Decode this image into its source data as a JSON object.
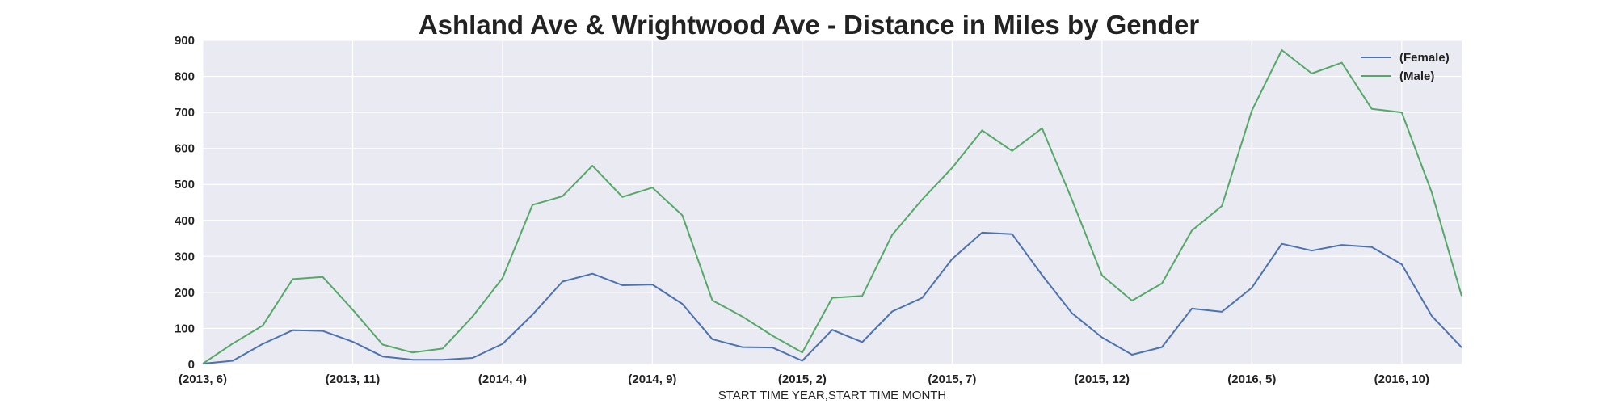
{
  "chart_data": {
    "type": "line",
    "title": "Ashland Ave & Wrightwood Ave - Distance in Miles by Gender",
    "xlabel": "START TIME YEAR,START TIME MONTH",
    "ylabel": "",
    "ylim": [
      0,
      900
    ],
    "yticks": [
      "0",
      "100",
      "200",
      "300",
      "400",
      "500",
      "600",
      "700",
      "800",
      "900"
    ],
    "xtick_labels": [
      "(2013, 6)",
      "(2013, 11)",
      "(2014, 4)",
      "(2014, 9)",
      "(2015, 2)",
      "(2015, 7)",
      "(2015, 12)",
      "(2016, 5)",
      "(2016, 10)"
    ],
    "x": [
      "(2013, 6)",
      "(2013, 7)",
      "(2013, 8)",
      "(2013, 9)",
      "(2013, 10)",
      "(2013, 11)",
      "(2013, 12)",
      "(2014, 1)",
      "(2014, 2)",
      "(2014, 3)",
      "(2014, 4)",
      "(2014, 5)",
      "(2014, 6)",
      "(2014, 7)",
      "(2014, 8)",
      "(2014, 9)",
      "(2014, 10)",
      "(2014, 11)",
      "(2014, 12)",
      "(2015, 1)",
      "(2015, 2)",
      "(2015, 3)",
      "(2015, 4)",
      "(2015, 5)",
      "(2015, 6)",
      "(2015, 7)",
      "(2015, 8)",
      "(2015, 9)",
      "(2015, 10)",
      "(2015, 11)",
      "(2015, 12)",
      "(2016, 1)",
      "(2016, 2)",
      "(2016, 3)",
      "(2016, 4)",
      "(2016, 5)",
      "(2016, 6)",
      "(2016, 7)",
      "(2016, 8)",
      "(2016, 9)",
      "(2016, 10)",
      "(2016, 11)",
      "(2016, 12)"
    ],
    "series": [
      {
        "name": "(Female)",
        "color": "#4c72b0",
        "values": [
          2,
          10,
          57,
          95,
          93,
          63,
          22,
          13,
          13,
          18,
          57,
          138,
          230,
          252,
          220,
          222,
          168,
          70,
          48,
          47,
          10,
          96,
          62,
          147,
          185,
          293,
          366,
          362,
          248,
          142,
          75,
          27,
          48,
          155,
          146,
          213,
          335,
          316,
          332,
          326,
          278,
          135,
          47
        ]
      },
      {
        "name": "(Male)",
        "color": "#55a868",
        "values": [
          2,
          58,
          108,
          237,
          243,
          152,
          55,
          33,
          44,
          133,
          240,
          443,
          467,
          552,
          465,
          491,
          414,
          178,
          133,
          80,
          33,
          185,
          190,
          360,
          458,
          546,
          650,
          593,
          656,
          457,
          247,
          177,
          225,
          372,
          440,
          705,
          873,
          808,
          838,
          710,
          700,
          478,
          190
        ]
      }
    ],
    "grid": true,
    "legend_position": "top-right",
    "background": "#eaeaf2"
  }
}
